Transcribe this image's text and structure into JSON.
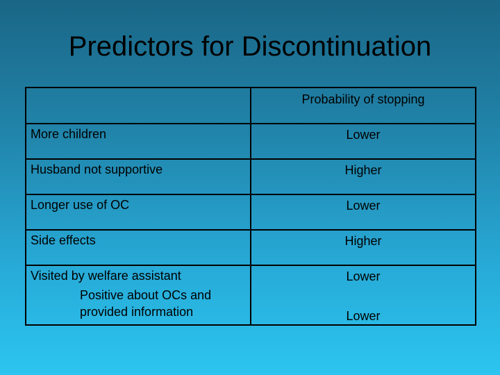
{
  "slide": {
    "title": "Predictors for Discontinuation"
  },
  "table": {
    "header": [
      "",
      "Probability of stopping"
    ],
    "rows": [
      {
        "label": "More children",
        "value": "Lower"
      },
      {
        "label": "Husband not supportive",
        "value": "Higher"
      },
      {
        "label": "Longer use of OC",
        "value": "Lower"
      },
      {
        "label": "Side effects",
        "value": "Higher"
      },
      {
        "label": "Visited by welfare assistant",
        "value": "Lower"
      },
      {
        "label": "Positive about OCs and",
        "label_line2": "provided information",
        "value": "Lower"
      }
    ]
  }
}
